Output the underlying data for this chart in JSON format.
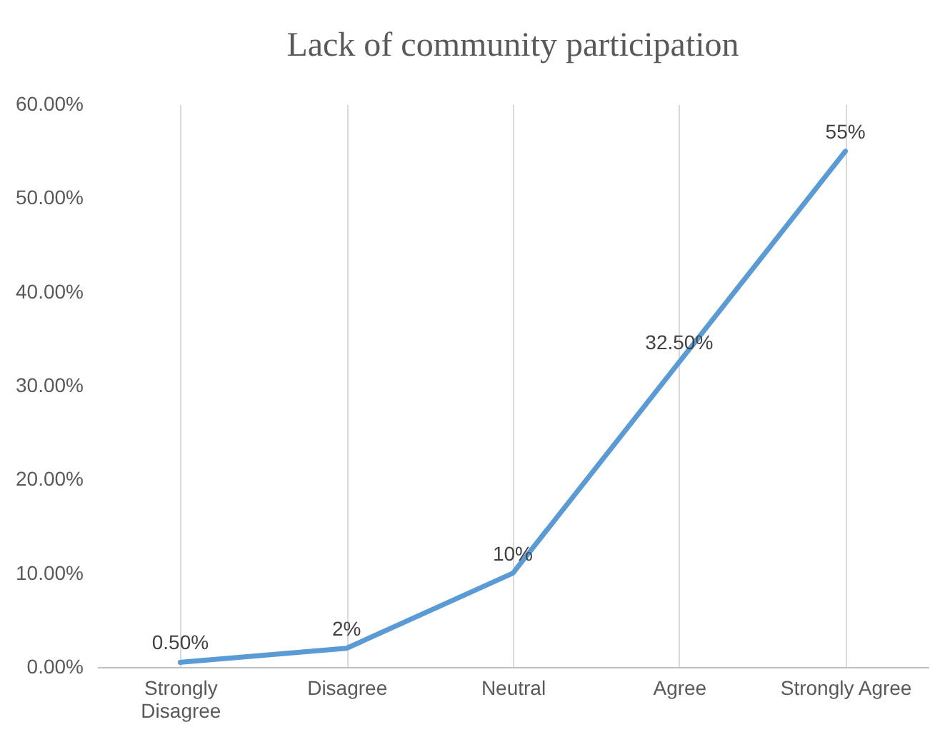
{
  "chart_data": {
    "type": "line",
    "title": "Lack of community participation",
    "categories": [
      "Strongly Disagree",
      "Disagree",
      "Neutral",
      "Agree",
      "Strongly  Agree"
    ],
    "series": [
      {
        "color": "#5b9bd5",
        "values": [
          0.5,
          2,
          10,
          32.5,
          55
        ],
        "value_labels": [
          "0.50%",
          "2%",
          "10%",
          "32.50%",
          "55%"
        ]
      }
    ],
    "ylim": [
      0,
      60
    ],
    "yticks": [
      {
        "value": 0,
        "label": "0.00%"
      },
      {
        "value": 10,
        "label": "10.00%"
      },
      {
        "value": 20,
        "label": "20.00%"
      },
      {
        "value": 30,
        "label": "30.00%"
      },
      {
        "value": 40,
        "label": "40.00%"
      },
      {
        "value": 50,
        "label": "50.00%"
      },
      {
        "value": 60,
        "label": "60.00%"
      }
    ],
    "grid": "x",
    "marker": "none",
    "line_style": "solid"
  }
}
